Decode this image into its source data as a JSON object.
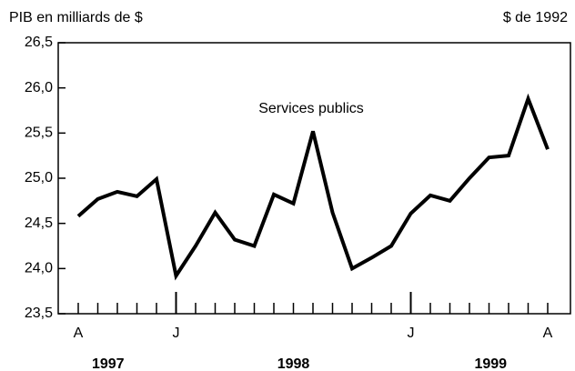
{
  "chart_data": {
    "type": "line",
    "title": "PIB en milliards de $",
    "subtitle": "$ de 1992",
    "annotation": "Services publics",
    "categories": [
      "A",
      null,
      null,
      null,
      null,
      "J",
      null,
      null,
      null,
      null,
      null,
      null,
      null,
      null,
      null,
      null,
      null,
      "J",
      null,
      null,
      null,
      null,
      null,
      null,
      "A"
    ],
    "year_labels": [
      "1997",
      "1998",
      "1999"
    ],
    "series": [
      {
        "name": "Services publics",
        "color": "#000000",
        "values": [
          24.58,
          24.77,
          24.85,
          24.8,
          24.99,
          23.92,
          24.25,
          24.62,
          24.32,
          24.25,
          24.82,
          24.72,
          25.52,
          24.62,
          24.0,
          24.12,
          24.25,
          24.61,
          24.81,
          24.75,
          25.0,
          25.23,
          25.25,
          25.88,
          25.32
        ]
      }
    ],
    "ylim": [
      23.5,
      26.5
    ],
    "yticks": [
      {
        "value": 23.5,
        "label": "23,5"
      },
      {
        "value": 24,
        "label": "24,0"
      },
      {
        "value": 24.5,
        "label": "24,5"
      },
      {
        "value": 25,
        "label": "25,0"
      },
      {
        "value": 25.5,
        "label": "25,5"
      },
      {
        "value": 26,
        "label": "26,0"
      },
      {
        "value": 26.5,
        "label": "26,5"
      }
    ],
    "grid": false
  }
}
